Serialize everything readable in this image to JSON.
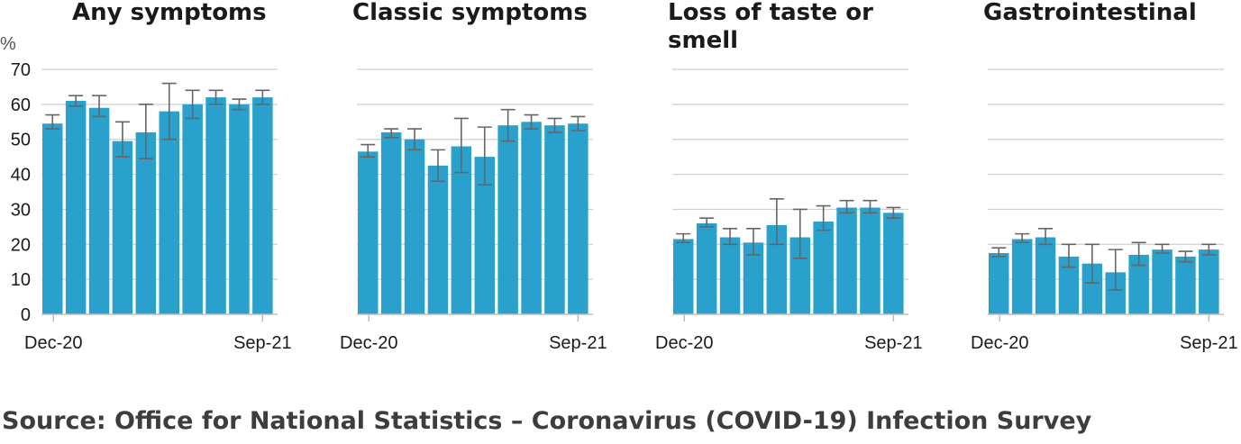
{
  "unit_label": "%",
  "source": "Source: Office for National Statistics – Coronavirus (COVID-19) Infection Survey",
  "colors": {
    "bar": "#2aa0cd",
    "error_bar": "#666666",
    "grid": "#cfcfcf",
    "axis": "#bdbdbd",
    "title": "#1a1a1a",
    "source": "#3d3d3d"
  },
  "chart_data": [
    {
      "type": "bar",
      "title": [
        "Any symptoms"
      ],
      "ylabel": "%",
      "ylim": [
        0,
        70
      ],
      "yticks": [
        0,
        10,
        20,
        30,
        40,
        50,
        60,
        70
      ],
      "grid": true,
      "x_tick_labels": [
        "Dec-20",
        "Sep-21"
      ],
      "values": [
        54.5,
        61,
        59,
        49.5,
        52,
        58,
        60,
        62,
        60,
        62
      ],
      "error_low": [
        53,
        59.5,
        56.5,
        45,
        44.5,
        50,
        56,
        60,
        58.5,
        60
      ],
      "error_high": [
        57,
        62.5,
        62.5,
        55,
        60,
        66,
        64,
        64,
        61.5,
        64
      ]
    },
    {
      "type": "bar",
      "title": [
        "Classic symptoms"
      ],
      "ylim": [
        0,
        70
      ],
      "yticks": [
        0,
        10,
        20,
        30,
        40,
        50,
        60,
        70
      ],
      "grid": true,
      "x_tick_labels": [
        "Dec-20",
        "Sep-21"
      ],
      "values": [
        46.5,
        52,
        50,
        42.5,
        48,
        45,
        54,
        55,
        54,
        54.5
      ],
      "error_low": [
        45,
        50.5,
        47,
        38,
        40.5,
        37,
        49.5,
        53,
        52,
        52.5
      ],
      "error_high": [
        48.5,
        53,
        53,
        47,
        56,
        53.5,
        58.5,
        57,
        56,
        56.5
      ]
    },
    {
      "type": "bar",
      "title": [
        "Loss of taste or",
        "smell"
      ],
      "ylim": [
        0,
        70
      ],
      "yticks": [
        0,
        10,
        20,
        30,
        40,
        50,
        60,
        70
      ],
      "grid": true,
      "x_tick_labels": [
        "Dec-20",
        "Sep-21"
      ],
      "values": [
        21.5,
        26,
        22,
        20.5,
        25.5,
        22,
        26.5,
        30.5,
        30.5,
        29
      ],
      "error_low": [
        20.5,
        25,
        20,
        17,
        20,
        16,
        24,
        29,
        29,
        27.5
      ],
      "error_high": [
        23,
        27.5,
        24.5,
        24.5,
        33,
        30,
        31,
        32.5,
        32.5,
        30.5
      ]
    },
    {
      "type": "bar",
      "title": [
        "Gastrointestinal"
      ],
      "ylim": [
        0,
        70
      ],
      "yticks": [
        0,
        10,
        20,
        30,
        40,
        50,
        60,
        70
      ],
      "grid": true,
      "x_tick_labels": [
        "Dec-20",
        "Sep-21"
      ],
      "values": [
        17.5,
        21.5,
        22,
        16.5,
        14.5,
        12,
        17,
        18.5,
        16.5,
        18.5
      ],
      "error_low": [
        16.5,
        20.5,
        20,
        13.5,
        9,
        7,
        14,
        17.5,
        15,
        17
      ],
      "error_high": [
        19,
        23,
        24.5,
        20,
        20,
        18.5,
        20.5,
        20,
        18,
        20
      ]
    }
  ]
}
